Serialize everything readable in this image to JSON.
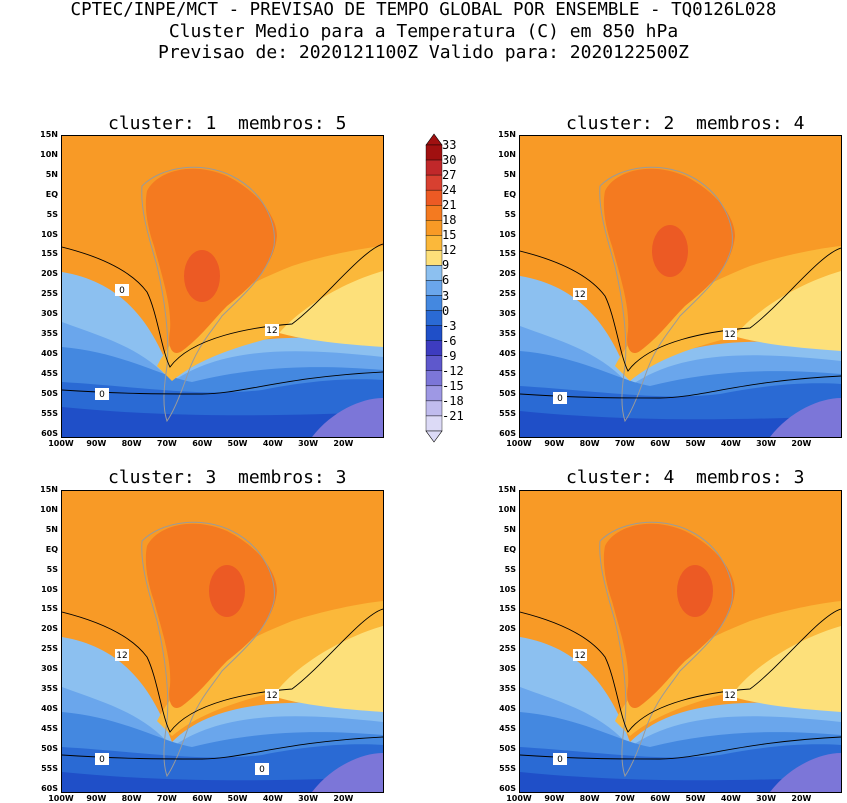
{
  "header": {
    "line1": "CPTEC/INPE/MCT - PREVISAO DE TEMPO GLOBAL POR ENSEMBLE - TQ0126L028",
    "line2": "Cluster Medio para a Temperatura (C) em 850 hPa",
    "line3": "Previsao de: 2020121100Z   Valido para: 2020122500Z"
  },
  "panels": [
    {
      "title": "cluster: 1  membros: 5",
      "contours": [
        "12",
        "0",
        "0"
      ]
    },
    {
      "title": "cluster: 2  membros: 4",
      "contours": [
        "12",
        "12",
        "0"
      ]
    },
    {
      "title": "cluster: 3  membros: 3",
      "contours": [
        "12",
        "12",
        "0",
        "0"
      ]
    },
    {
      "title": "cluster: 4  membros: 3",
      "contours": [
        "12",
        "12",
        "0"
      ]
    }
  ],
  "lat_labels": [
    "15N",
    "10N",
    "5N",
    "EQ",
    "5S",
    "10S",
    "15S",
    "20S",
    "25S",
    "30S",
    "35S",
    "40S",
    "45S",
    "50S",
    "55S",
    "60S"
  ],
  "lon_labels": [
    "100W",
    "90W",
    "80W",
    "70W",
    "60W",
    "50W",
    "40W",
    "30W",
    "20W"
  ],
  "colorbar": {
    "labels": [
      "33",
      "30",
      "27",
      "24",
      "21",
      "18",
      "15",
      "12",
      "9",
      "6",
      "3",
      "0",
      "-3",
      "-6",
      "-9",
      "-12",
      "-15",
      "-18",
      "-21"
    ],
    "colors": [
      "#a01010",
      "#c0282a",
      "#d84030",
      "#ec5a24",
      "#f47a20",
      "#f89a26",
      "#fbb83a",
      "#fde07a",
      "#8cc0f0",
      "#6aa6ec",
      "#4488e0",
      "#2a6ad4",
      "#1f4fc8",
      "#3d3cc0",
      "#5e58cc",
      "#7c76d8",
      "#9e98e4",
      "#c0bcee",
      "#dcdaf6"
    ]
  }
}
